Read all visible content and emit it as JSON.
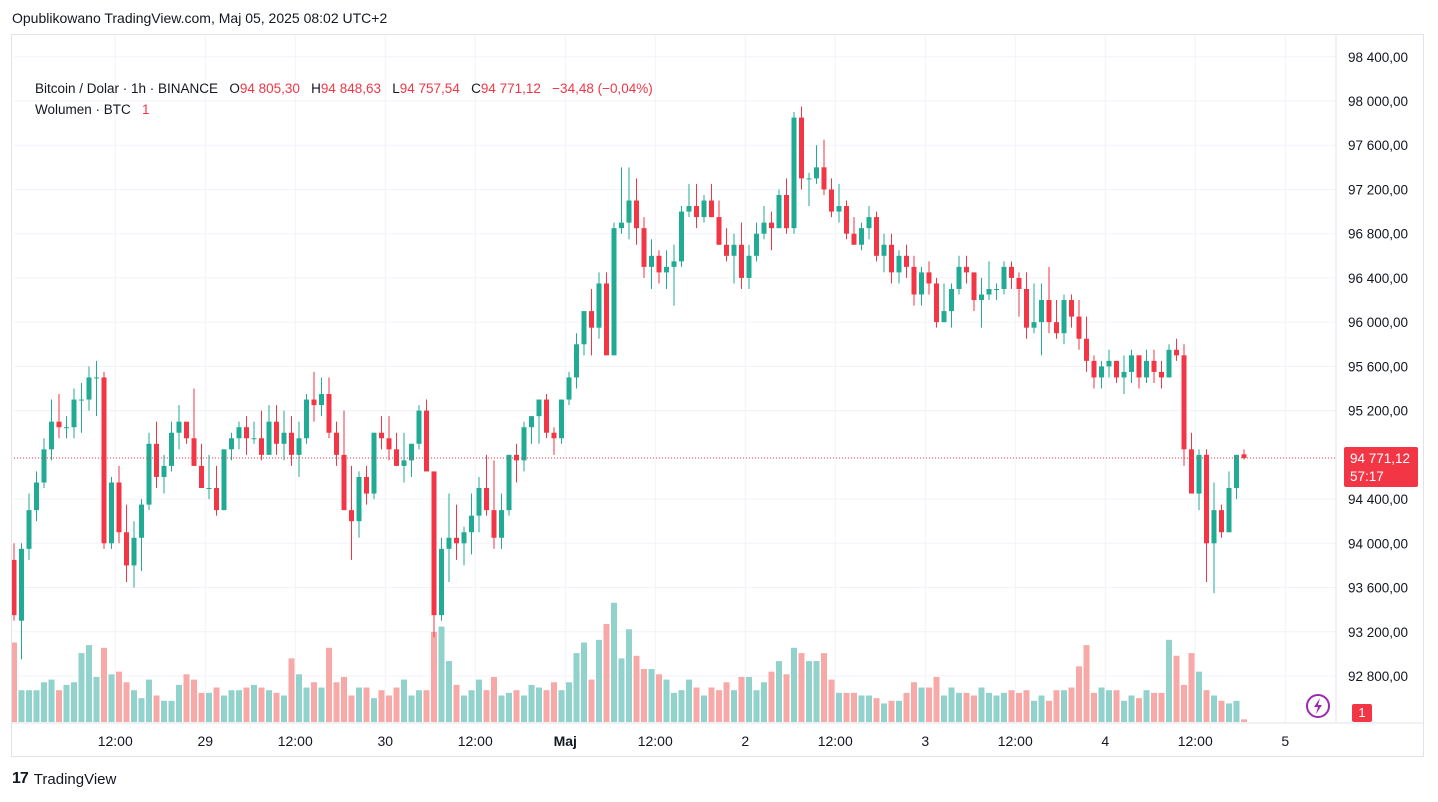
{
  "header": {
    "published": "Opublikowano TradingView.com, Maj 05, 2025 08:02 UTC+2"
  },
  "legend": {
    "symbol": "Bitcoin / Dolar · 1h · BINANCE",
    "o_label": "O",
    "o_value": "94 805,30",
    "h_label": "H",
    "h_value": "94 848,63",
    "l_label": "L",
    "l_value": "94 757,54",
    "c_label": "C",
    "c_value": "94 771,12",
    "change": "−34,48 (−0,04%)",
    "volume_label": "Wolumen · BTC",
    "volume_value": "1"
  },
  "price_axis": {
    "ticks": [
      "98 400,00",
      "98 000,00",
      "97 600,00",
      "97 200,00",
      "96 800,00",
      "96 400,00",
      "96 000,00",
      "95 600,00",
      "95 200,00",
      "94 400,00",
      "94 000,00",
      "93 600,00",
      "93 200,00",
      "92 800,00"
    ],
    "last_price_label": "94 771,12",
    "countdown": "57:17",
    "volume_badge": "1"
  },
  "footer": {
    "logo_mark": "17",
    "brand": "TradingView"
  },
  "colors": {
    "up": "#22ab94",
    "down": "#f23645",
    "up_volume": "#92d2cc",
    "down_volume": "#f7a9a7",
    "grid": "#f0f3fa"
  },
  "chart_data": {
    "type": "candlestick",
    "symbol": "BTCUSD",
    "interval": "1h",
    "last_price": 94771.12,
    "y_range": [
      92450,
      98600
    ],
    "x_labels": [
      {
        "text": "12:00",
        "bar": 13.5
      },
      {
        "text": "29",
        "bar": 25.5
      },
      {
        "text": "12:00",
        "bar": 37.5
      },
      {
        "text": "30",
        "bar": 49.5
      },
      {
        "text": "12:00",
        "bar": 61.5
      },
      {
        "text": "Maj",
        "bar": 73.5
      },
      {
        "text": "12:00",
        "bar": 85.5
      },
      {
        "text": "2",
        "bar": 97.5
      },
      {
        "text": "12:00",
        "bar": 109.5
      },
      {
        "text": "3",
        "bar": 121.5
      },
      {
        "text": "12:00",
        "bar": 133.5
      },
      {
        "text": "4",
        "bar": 145.5
      },
      {
        "text": "12:00",
        "bar": 157.5
      },
      {
        "text": "5",
        "bar": 169.5
      }
    ],
    "candles": [
      [
        93850,
        94000,
        93300,
        93350,
        30
      ],
      [
        93300,
        94000,
        92950,
        93950,
        12
      ],
      [
        93950,
        94450,
        93850,
        94300,
        12
      ],
      [
        94300,
        94650,
        94200,
        94550,
        12
      ],
      [
        94550,
        94950,
        94500,
        94850,
        15
      ],
      [
        94850,
        95300,
        94750,
        95100,
        16
      ],
      [
        95100,
        95350,
        94950,
        95050,
        12
      ],
      [
        95050,
        95150,
        94950,
        95050,
        14
      ],
      [
        95050,
        95400,
        94950,
        95300,
        15
      ],
      [
        95300,
        95450,
        95000,
        95300,
        26
      ],
      [
        95300,
        95600,
        95200,
        95500,
        29
      ],
      [
        95500,
        95650,
        95150,
        95500,
        17
      ],
      [
        95500,
        95550,
        93950,
        94000,
        28
      ],
      [
        94000,
        94600,
        93950,
        94550,
        18
      ],
      [
        94550,
        94700,
        94000,
        94100,
        19
      ],
      [
        94100,
        94350,
        93650,
        93800,
        15
      ],
      [
        93800,
        94200,
        93600,
        94050,
        12
      ],
      [
        94050,
        94400,
        93750,
        94350,
        9
      ],
      [
        94350,
        95000,
        94300,
        94900,
        16
      ],
      [
        94900,
        95100,
        94500,
        94600,
        10
      ],
      [
        94600,
        94800,
        94450,
        94700,
        8
      ],
      [
        94700,
        95100,
        94650,
        95000,
        8
      ],
      [
        95000,
        95250,
        94850,
        95100,
        14
      ],
      [
        95100,
        95050,
        94900,
        94950,
        18
      ],
      [
        94950,
        95400,
        94700,
        94700,
        16
      ],
      [
        94700,
        94900,
        94500,
        94500,
        11
      ],
      [
        94500,
        94800,
        94400,
        94500,
        11
      ],
      [
        94500,
        94700,
        94250,
        94300,
        13
      ],
      [
        94300,
        94850,
        94300,
        94850,
        10
      ],
      [
        94850,
        95000,
        94750,
        94950,
        12
      ],
      [
        94950,
        95100,
        94850,
        95050,
        12
      ],
      [
        95050,
        95150,
        94800,
        94950,
        13
      ],
      [
        94950,
        95100,
        94900,
        94950,
        14
      ],
      [
        94950,
        95200,
        94750,
        94800,
        13
      ],
      [
        94800,
        95250,
        94800,
        95100,
        12
      ],
      [
        95100,
        95250,
        94800,
        94900,
        11
      ],
      [
        94900,
        95200,
        94750,
        95000,
        10
      ],
      [
        95000,
        95150,
        94700,
        94800,
        24
      ],
      [
        94800,
        95100,
        94600,
        94950,
        18
      ],
      [
        94950,
        95350,
        94900,
        95300,
        13
      ],
      [
        95300,
        95550,
        95100,
        95250,
        15
      ],
      [
        95250,
        95500,
        95150,
        95350,
        13
      ],
      [
        95350,
        95500,
        94950,
        95000,
        28
      ],
      [
        95000,
        95100,
        94700,
        94800,
        15
      ],
      [
        94800,
        95200,
        94300,
        94300,
        17
      ],
      [
        94300,
        94700,
        93850,
        94200,
        10
      ],
      [
        94200,
        94650,
        94050,
        94600,
        13
      ],
      [
        94600,
        94700,
        94350,
        94450,
        13
      ],
      [
        94450,
        95000,
        94400,
        95000,
        9
      ],
      [
        95000,
        95150,
        94850,
        94950,
        12
      ],
      [
        94950,
        95150,
        94750,
        94850,
        10
      ],
      [
        94850,
        95000,
        94700,
        94700,
        13
      ],
      [
        94700,
        95000,
        94550,
        94750,
        16
      ],
      [
        94750,
        94900,
        94600,
        94900,
        10
      ],
      [
        94900,
        95250,
        94850,
        95200,
        12
      ],
      [
        95200,
        95300,
        94650,
        94650,
        12
      ],
      [
        94650,
        94600,
        93150,
        93350,
        34
      ],
      [
        93350,
        94050,
        93300,
        93950,
        36
      ],
      [
        93950,
        94450,
        93650,
        94050,
        23
      ],
      [
        94050,
        94350,
        93850,
        94000,
        14
      ],
      [
        94000,
        94150,
        93800,
        94100,
        10
      ],
      [
        94100,
        94450,
        93900,
        94250,
        12
      ],
      [
        94250,
        94600,
        94100,
        94500,
        16
      ],
      [
        94500,
        94800,
        94250,
        94300,
        12
      ],
      [
        94300,
        94750,
        93950,
        94050,
        17
      ],
      [
        94050,
        94450,
        93950,
        94300,
        10
      ],
      [
        94300,
        94800,
        94250,
        94800,
        11
      ],
      [
        94800,
        94900,
        94550,
        94750,
        12
      ],
      [
        94750,
        95100,
        94650,
        95050,
        10
      ],
      [
        95050,
        95150,
        94900,
        95150,
        14
      ],
      [
        95150,
        95300,
        94900,
        95300,
        13
      ],
      [
        95300,
        95350,
        94950,
        95000,
        12
      ],
      [
        95000,
        95050,
        94800,
        94950,
        15
      ],
      [
        94950,
        95300,
        94900,
        95300,
        12
      ],
      [
        95300,
        95550,
        95250,
        95500,
        15
      ],
      [
        95500,
        95900,
        95400,
        95800,
        26
      ],
      [
        95800,
        96100,
        95700,
        96100,
        30
      ],
      [
        96100,
        96300,
        95700,
        95950,
        16
      ],
      [
        95950,
        96450,
        95850,
        96350,
        31
      ],
      [
        96350,
        96450,
        95700,
        95700,
        37
      ],
      [
        95700,
        96900,
        95700,
        96850,
        45
      ],
      [
        96850,
        97400,
        96800,
        96900,
        24
      ],
      [
        96900,
        97400,
        96750,
        97100,
        35
      ],
      [
        97100,
        97300,
        96700,
        96850,
        25
      ],
      [
        96850,
        96950,
        96400,
        96500,
        20
      ],
      [
        96500,
        96750,
        96300,
        96600,
        20
      ],
      [
        96600,
        96650,
        96350,
        96450,
        18
      ],
      [
        96450,
        96650,
        96300,
        96500,
        16
      ],
      [
        96500,
        96700,
        96150,
        96550,
        11
      ],
      [
        96550,
        97050,
        96500,
        97000,
        12
      ],
      [
        97000,
        97250,
        96950,
        97050,
        16
      ],
      [
        97050,
        97250,
        96850,
        96950,
        13
      ],
      [
        96950,
        97150,
        96900,
        97100,
        10
      ],
      [
        97100,
        97250,
        96950,
        96950,
        13
      ],
      [
        96950,
        97100,
        96700,
        96700,
        12
      ],
      [
        96700,
        96850,
        96550,
        96600,
        15
      ],
      [
        96600,
        96800,
        96350,
        96700,
        12
      ],
      [
        96700,
        96900,
        96300,
        96400,
        17
      ],
      [
        96400,
        96700,
        96300,
        96600,
        17
      ],
      [
        96600,
        96900,
        96550,
        96800,
        12
      ],
      [
        96800,
        97050,
        96750,
        96900,
        15
      ],
      [
        96900,
        97000,
        96650,
        96850,
        19
      ],
      [
        96850,
        97200,
        96850,
        97150,
        23
      ],
      [
        97150,
        97300,
        96800,
        96850,
        18
      ],
      [
        96850,
        97900,
        96800,
        97850,
        28
      ],
      [
        97850,
        97950,
        97200,
        97300,
        26
      ],
      [
        97300,
        97350,
        97050,
        97300,
        23
      ],
      [
        97300,
        97600,
        97250,
        97400,
        23
      ],
      [
        97400,
        97650,
        97150,
        97200,
        26
      ],
      [
        97200,
        97300,
        96950,
        97000,
        16
      ],
      [
        97000,
        97250,
        96900,
        97050,
        11
      ],
      [
        97050,
        97100,
        96750,
        96800,
        11
      ],
      [
        96800,
        96950,
        96700,
        96700,
        11
      ],
      [
        96700,
        96900,
        96650,
        96850,
        10
      ],
      [
        96850,
        97050,
        96750,
        96950,
        10
      ],
      [
        96950,
        97000,
        96550,
        96600,
        9
      ],
      [
        96600,
        96800,
        96450,
        96700,
        7
      ],
      [
        96700,
        96800,
        96350,
        96450,
        8
      ],
      [
        96450,
        96650,
        96350,
        96600,
        8
      ],
      [
        96600,
        96700,
        96400,
        96500,
        11
      ],
      [
        96500,
        96600,
        96150,
        96250,
        15
      ],
      [
        96250,
        96500,
        96150,
        96450,
        13
      ],
      [
        96450,
        96550,
        96250,
        96350,
        13
      ],
      [
        96350,
        96400,
        95950,
        96000,
        17
      ],
      [
        96000,
        96350,
        96000,
        96100,
        10
      ],
      [
        96100,
        96350,
        95950,
        96300,
        13
      ],
      [
        96300,
        96600,
        96250,
        96500,
        11
      ],
      [
        96500,
        96600,
        96350,
        96450,
        11
      ],
      [
        96450,
        96450,
        96100,
        96200,
        10
      ],
      [
        96200,
        96400,
        95950,
        96250,
        13
      ],
      [
        96250,
        96550,
        96200,
        96300,
        11
      ],
      [
        96300,
        96350,
        96200,
        96300,
        10
      ],
      [
        96300,
        96550,
        96250,
        96500,
        11
      ],
      [
        96500,
        96550,
        96300,
        96400,
        12
      ],
      [
        96400,
        96450,
        96050,
        96300,
        11
      ],
      [
        96300,
        96450,
        95850,
        95950,
        12
      ],
      [
        95950,
        96350,
        95900,
        96000,
        8
      ],
      [
        96000,
        96350,
        95700,
        96200,
        10
      ],
      [
        96200,
        96500,
        95900,
        96000,
        8
      ],
      [
        96000,
        96200,
        95850,
        95900,
        12
      ],
      [
        95900,
        96250,
        95800,
        96200,
        12
      ],
      [
        96200,
        96250,
        95950,
        96050,
        13
      ],
      [
        96050,
        96200,
        95750,
        95850,
        21
      ],
      [
        95850,
        96050,
        95550,
        95650,
        29
      ],
      [
        95650,
        95700,
        95400,
        95500,
        11
      ],
      [
        95500,
        95650,
        95400,
        95600,
        13
      ],
      [
        95600,
        95750,
        95500,
        95650,
        12
      ],
      [
        95650,
        95650,
        95450,
        95500,
        12
      ],
      [
        95500,
        95700,
        95350,
        95550,
        8
      ],
      [
        95550,
        95750,
        95450,
        95700,
        10
      ],
      [
        95700,
        95650,
        95400,
        95500,
        9
      ],
      [
        95500,
        95750,
        95450,
        95650,
        12
      ],
      [
        95650,
        95750,
        95450,
        95550,
        11
      ],
      [
        95550,
        95650,
        95400,
        95500,
        11
      ],
      [
        95500,
        95800,
        95500,
        95750,
        31
      ],
      [
        95750,
        95850,
        95650,
        95700,
        25
      ],
      [
        95700,
        95800,
        94700,
        94850,
        14
      ],
      [
        94850,
        95000,
        94450,
        94450,
        26
      ],
      [
        94450,
        94850,
        94300,
        94800,
        19
      ],
      [
        94800,
        94850,
        93650,
        94000,
        12
      ],
      [
        94000,
        94550,
        93550,
        94300,
        10
      ],
      [
        94300,
        94350,
        94050,
        94100,
        8
      ],
      [
        94100,
        94650,
        94100,
        94500,
        7
      ],
      [
        94500,
        94800,
        94400,
        94800,
        8
      ],
      [
        94805,
        94849,
        94758,
        94771,
        1
      ]
    ]
  }
}
